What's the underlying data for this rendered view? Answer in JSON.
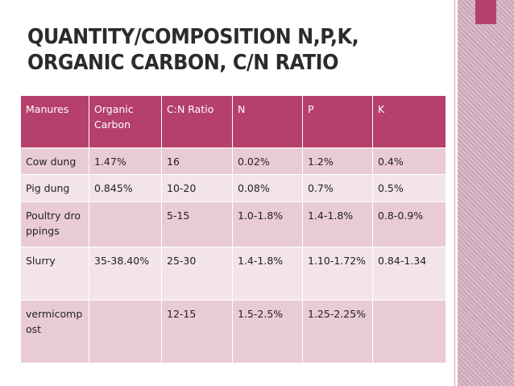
{
  "title": [
    "QUANTITY/COMPOSITION N,P,K,",
    "ORGANIC CARBON, C/N RATIO"
  ],
  "table": {
    "header": [
      "Manures",
      "Organic Carbon",
      "C:N Ratio",
      "N",
      "P",
      "K"
    ],
    "rows": [
      [
        "Cow dung",
        "1.47%",
        "16",
        "0.02%",
        "1.2%",
        "0.4%"
      ],
      [
        "Pig dung",
        "0.845%",
        "10-20",
        "0.08%",
        "0.7%",
        "0.5%"
      ],
      [
        "Poultry droppings",
        null,
        "5-15",
        "1.0-1.8%",
        "1.4-1.8%",
        "0.8-0.9%"
      ],
      [
        "Slurry",
        "35-38.40%",
        "25-30",
        "1.4-1.8%",
        "1.10-1.72%",
        "0.84-1.34"
      ],
      [
        "vermicompost",
        null,
        "12-15",
        "1.5-2.5%",
        "1.25-2.25%",
        null
      ]
    ]
  }
}
